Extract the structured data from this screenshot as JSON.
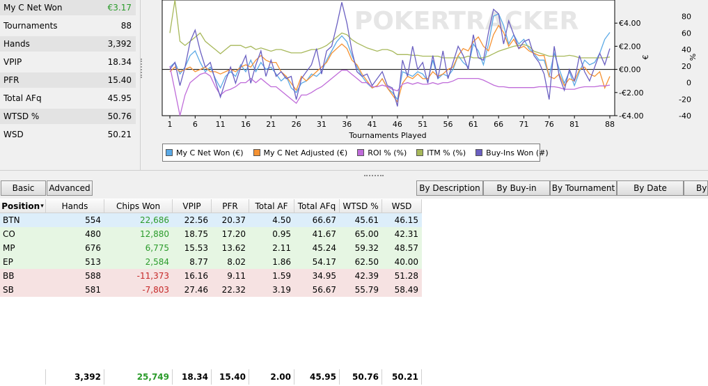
{
  "stats": [
    {
      "label": "My C Net Won",
      "value": "€3.17",
      "color": "green"
    },
    {
      "label": "Tournaments",
      "value": "88"
    },
    {
      "label": "Hands",
      "value": "3,392"
    },
    {
      "label": "VPIP",
      "value": "18.34"
    },
    {
      "label": "PFR",
      "value": "15.40"
    },
    {
      "label": "Total AFq",
      "value": "45.95"
    },
    {
      "label": "WTSD %",
      "value": "50.76"
    },
    {
      "label": "WSD",
      "value": "50.21"
    }
  ],
  "chart": {
    "watermark": "POKERTRACKER",
    "xlabel": "Tournaments Played",
    "x_ticks": [
      "1",
      "6",
      "11",
      "16",
      "21",
      "26",
      "31",
      "36",
      "41",
      "46",
      "51",
      "56",
      "61",
      "66",
      "71",
      "76",
      "81",
      "88"
    ],
    "euro_ticks": [
      "€4.00",
      "€2.00",
      "€0.00",
      "-€2.00",
      "-€4.00"
    ],
    "pct_ticks": [
      "80",
      "60",
      "40",
      "20",
      "0",
      "-20",
      "-40"
    ],
    "euro_axis_label": "€",
    "pct_axis_label": "%"
  },
  "chart_data": {
    "type": "line",
    "x": [
      1,
      2,
      3,
      4,
      5,
      6,
      7,
      8,
      9,
      10,
      11,
      12,
      13,
      14,
      15,
      16,
      17,
      18,
      19,
      20,
      21,
      22,
      23,
      24,
      25,
      26,
      27,
      28,
      29,
      30,
      31,
      32,
      33,
      34,
      35,
      36,
      37,
      38,
      39,
      40,
      41,
      42,
      43,
      44,
      45,
      46,
      47,
      48,
      49,
      50,
      51,
      52,
      53,
      54,
      55,
      56,
      57,
      58,
      59,
      60,
      61,
      62,
      63,
      64,
      65,
      66,
      67,
      68,
      69,
      70,
      71,
      72,
      73,
      74,
      75,
      76,
      77,
      78,
      79,
      80,
      81,
      82,
      83,
      84,
      85,
      86,
      87,
      88
    ],
    "series": [
      {
        "name": "My C Net Won (€)",
        "axis": "euro",
        "color": "#5aa9e6",
        "values": [
          0.2,
          0.6,
          -0.4,
          0.2,
          1.2,
          1.6,
          0.6,
          -0.2,
          0.2,
          -0.8,
          -1.6,
          -0.6,
          -0.2,
          -0.6,
          0.4,
          -0.2,
          0.8,
          -0.2,
          0.6,
          0,
          0.2,
          -0.4,
          -1.0,
          -0.6,
          -1.6,
          -2.0,
          -1.2,
          -1.0,
          -0.4,
          -0.6,
          -0.2,
          0.8,
          1.6,
          2.4,
          2.9,
          2.4,
          1.2,
          0.2,
          -0.6,
          -1.2,
          -1.6,
          -1.4,
          -0.8,
          -1.6,
          -2.0,
          -2.6,
          -0.2,
          -0.4,
          -0.6,
          -0.2,
          -0.4,
          -1.0,
          0.8,
          -0.8,
          -0.4,
          -0.6,
          0,
          1.2,
          0.6,
          0.2,
          2.2,
          1.6,
          0.4,
          2.2,
          4.6,
          4.8,
          3.8,
          2.2,
          3.0,
          2.2,
          2.6,
          1.8,
          1.4,
          0.8,
          0.8,
          -0.6,
          1.4,
          0,
          -1.2,
          -0.2,
          -1.4,
          -0.2,
          0.8,
          0.4,
          0.6,
          1.4,
          2.6,
          3.2
        ]
      },
      {
        "name": "My C Net Adjusted (€)",
        "axis": "euro",
        "color": "#f59233",
        "values": [
          -0.2,
          0.2,
          -0.2,
          0,
          0.2,
          -0.2,
          0,
          0.2,
          -0.2,
          -0.2,
          -0.4,
          -0.2,
          0,
          -0.2,
          0.2,
          0.4,
          0.2,
          0.8,
          1.2,
          0.8,
          0.6,
          0.6,
          -0.2,
          -0.6,
          -1.2,
          -1.8,
          -0.6,
          -1.0,
          -0.6,
          -0.2,
          0.2,
          0.6,
          1.4,
          1.8,
          2.2,
          1.8,
          0.8,
          0.4,
          -0.4,
          -1.0,
          -1.6,
          -1.4,
          -0.8,
          -1.6,
          -2.2,
          -2.8,
          -1.2,
          -0.6,
          -0.8,
          -0.4,
          -0.8,
          -0.8,
          -0.2,
          -0.6,
          -0.4,
          0,
          0.2,
          1.2,
          1.8,
          1.6,
          2.4,
          2.8,
          2.0,
          1.6,
          3.0,
          3.8,
          3.2,
          2.0,
          2.6,
          1.8,
          2.0,
          1.6,
          1.4,
          1.2,
          1.2,
          -0.6,
          -0.8,
          -0.4,
          -1.4,
          -0.8,
          -1.0,
          0,
          0.2,
          -0.4,
          -0.6,
          -0.2,
          -1.6,
          -0.6
        ]
      },
      {
        "name": "ROI % (%)",
        "axis": "pct",
        "color": "#bf6bd9",
        "values": [
          20,
          -10,
          -40,
          -15,
          0,
          5,
          10,
          12,
          8,
          -5,
          -15,
          -10,
          -8,
          -5,
          0,
          0,
          5,
          0,
          5,
          0,
          -5,
          -5,
          -10,
          -15,
          -20,
          -25,
          -15,
          -15,
          -12,
          -8,
          -5,
          0,
          5,
          10,
          15,
          15,
          10,
          5,
          0,
          0,
          -5,
          -5,
          -3,
          -5,
          -8,
          -10,
          -2,
          0,
          -2,
          0,
          -2,
          -2,
          0,
          -2,
          0,
          0,
          2,
          5,
          5,
          5,
          5,
          5,
          3,
          0,
          -3,
          -5,
          -5,
          -6,
          -6,
          -6,
          -6,
          -6,
          -6,
          -5,
          -5,
          -5,
          -5,
          -6,
          -8,
          -8,
          -8,
          -6,
          -5,
          -5,
          -5,
          -4,
          -4,
          -3
        ]
      },
      {
        "name": "ITM % (%)",
        "axis": "pct",
        "color": "#a7b85a",
        "values": [
          60,
          100,
          50,
          45,
          50,
          55,
          60,
          50,
          45,
          40,
          35,
          40,
          45,
          45,
          45,
          42,
          44,
          40,
          42,
          40,
          38,
          40,
          40,
          38,
          36,
          36,
          36,
          38,
          40,
          40,
          42,
          45,
          50,
          55,
          60,
          58,
          52,
          48,
          45,
          42,
          40,
          38,
          40,
          40,
          38,
          34,
          34,
          34,
          33,
          33,
          32,
          32,
          32,
          32,
          30,
          30,
          30,
          30,
          30,
          32,
          30,
          30,
          30,
          32,
          35,
          38,
          40,
          42,
          44,
          45,
          46,
          44,
          38,
          36,
          34,
          32,
          32,
          32,
          32,
          33,
          32,
          30,
          30,
          30,
          30,
          30,
          30,
          31
        ]
      },
      {
        "name": "Buy-Ins Won (#)",
        "axis": "euro",
        "color": "#6a5fc1",
        "values": [
          0,
          0.6,
          -1.4,
          0.2,
          2.4,
          3.4,
          1.6,
          0.2,
          0.6,
          -1.0,
          -2.4,
          -1.0,
          0.2,
          -1.2,
          0.2,
          1.2,
          -1.2,
          0.4,
          1.6,
          -0.6,
          0.8,
          -0.6,
          -0.2,
          -0.8,
          -0.6,
          -2.6,
          -0.8,
          -0.2,
          0.4,
          1.8,
          -0.4,
          1.6,
          2.0,
          3.8,
          5.8,
          4.0,
          1.6,
          -0.2,
          -0.6,
          -0.4,
          -1.4,
          -0.8,
          -0.2,
          -1.4,
          -1.6,
          -3.2,
          0.8,
          -0.6,
          2.0,
          0,
          0.6,
          -1.2,
          1.2,
          -0.8,
          1.6,
          -0.8,
          0.6,
          2.0,
          1.2,
          0,
          3.0,
          1.0,
          0.8,
          3.2,
          5.2,
          4.8,
          2.2,
          4.2,
          3.0,
          1.8,
          2.4,
          2.6,
          1.2,
          0.6,
          -0.4,
          -2.6,
          2.0,
          -0.6,
          -1.8,
          0,
          -1.0,
          1.2,
          -0.2,
          -1.0,
          0.2,
          1.4,
          0.4,
          1.8
        ]
      }
    ],
    "euro_axis": {
      "range": [
        -4,
        6
      ]
    },
    "pct_axis": {
      "range": [
        -40,
        100
      ]
    }
  },
  "tabs_left": [
    "Basic",
    "Advanced"
  ],
  "tabs_right": [
    "By Description",
    "By Buy-in",
    "By Tournament",
    "By Date",
    "By"
  ],
  "table": {
    "headers": [
      "Position",
      "Hands",
      "Chips Won",
      "VPIP",
      "PFR",
      "Total AF",
      "Total AFq",
      "WTSD %",
      "WSD"
    ],
    "rows": [
      {
        "tint": "blue",
        "cells": [
          "BTN",
          "554",
          "22,686",
          "22.56",
          "20.37",
          "4.50",
          "66.67",
          "45.61",
          "46.15"
        ],
        "sign": "pos"
      },
      {
        "tint": "green",
        "cells": [
          "CO",
          "480",
          "12,880",
          "18.75",
          "17.20",
          "0.95",
          "41.67",
          "65.00",
          "42.31"
        ],
        "sign": "pos"
      },
      {
        "tint": "green",
        "cells": [
          "MP",
          "676",
          "6,775",
          "15.53",
          "13.62",
          "2.11",
          "45.24",
          "59.32",
          "48.57"
        ],
        "sign": "pos"
      },
      {
        "tint": "green",
        "cells": [
          "EP",
          "513",
          "2,584",
          "8.77",
          "8.02",
          "1.86",
          "54.17",
          "62.50",
          "40.00"
        ],
        "sign": "pos"
      },
      {
        "tint": "red",
        "cells": [
          "BB",
          "588",
          "-11,373",
          "16.16",
          "9.11",
          "1.59",
          "34.95",
          "42.39",
          "51.28"
        ],
        "sign": "neg"
      },
      {
        "tint": "red",
        "cells": [
          "SB",
          "581",
          "-7,803",
          "27.46",
          "22.32",
          "3.19",
          "56.67",
          "55.79",
          "58.49"
        ],
        "sign": "neg"
      }
    ],
    "totals": [
      "",
      "3,392",
      "25,749",
      "18.34",
      "15.40",
      "2.00",
      "45.95",
      "50.76",
      "50.21"
    ]
  }
}
